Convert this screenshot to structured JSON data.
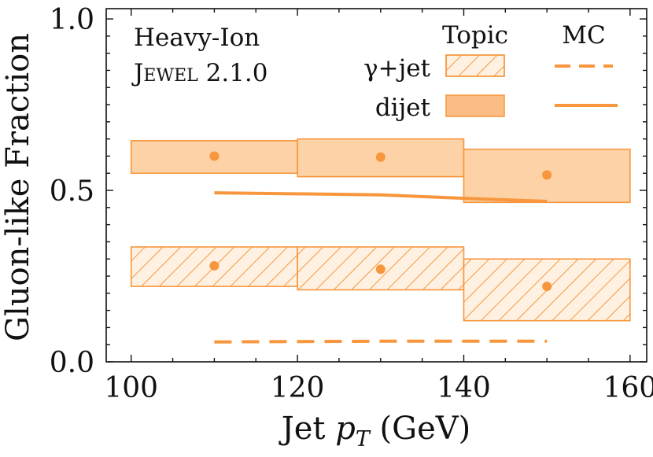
{
  "chart_data": {
    "type": "band-scatter-line",
    "xlabel": "Jet p_T (GeV)",
    "ylabel": "Gluon-like Fraction",
    "xlim": [
      97,
      162
    ],
    "ylim": [
      0.0,
      1.03
    ],
    "xticks": [
      100,
      120,
      140,
      160
    ],
    "yticks": [
      0.0,
      0.5,
      1.0
    ],
    "xtick_labels": [
      "100",
      "120",
      "140",
      "160"
    ],
    "ytick_labels": [
      "0.0",
      "0.5",
      "1.0"
    ],
    "annotation": [
      "Heavy-Ion",
      "Jewel 2.1.0"
    ],
    "legend": {
      "col_headers": [
        "Topic",
        "MC"
      ],
      "rows": [
        "γ+jet",
        "dijet"
      ]
    },
    "colors": {
      "series": "#f7963c",
      "band_fill": "#fcd2a6",
      "hatch_bg": "#fff1e2"
    },
    "series": [
      {
        "name": "dijet",
        "bands": [
          {
            "x0": 100,
            "x1": 120,
            "low": 0.55,
            "high": 0.645
          },
          {
            "x0": 120,
            "x1": 140,
            "low": 0.54,
            "high": 0.65
          },
          {
            "x0": 140,
            "x1": 160,
            "low": 0.465,
            "high": 0.62
          }
        ],
        "points": [
          {
            "x": 110,
            "y": 0.6
          },
          {
            "x": 130,
            "y": 0.597
          },
          {
            "x": 150,
            "y": 0.545
          }
        ],
        "mc_line": [
          {
            "x": 110,
            "y": 0.493
          },
          {
            "x": 130,
            "y": 0.487
          },
          {
            "x": 140,
            "y": 0.477
          },
          {
            "x": 150,
            "y": 0.468
          }
        ]
      },
      {
        "name": "γ+jet",
        "bands": [
          {
            "x0": 100,
            "x1": 120,
            "low": 0.22,
            "high": 0.335
          },
          {
            "x0": 120,
            "x1": 140,
            "low": 0.21,
            "high": 0.335
          },
          {
            "x0": 140,
            "x1": 160,
            "low": 0.12,
            "high": 0.3
          }
        ],
        "points": [
          {
            "x": 110,
            "y": 0.28
          },
          {
            "x": 130,
            "y": 0.27
          },
          {
            "x": 150,
            "y": 0.22
          }
        ],
        "mc_line": [
          {
            "x": 110,
            "y": 0.058
          },
          {
            "x": 130,
            "y": 0.06
          },
          {
            "x": 150,
            "y": 0.06
          }
        ]
      }
    ]
  }
}
